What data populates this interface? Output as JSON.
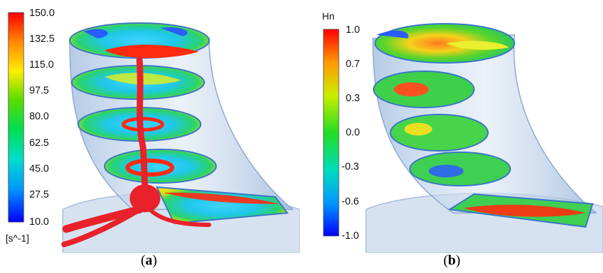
{
  "panel_a": {
    "colorbar": {
      "ticks": [
        "150.0",
        "132.5",
        "115.0",
        "97.5",
        "80.0",
        "62.5",
        "45.0",
        "27.5",
        "10.0"
      ],
      "unit": "[s^-1]",
      "colors": [
        "#ff0000",
        "#ff8800",
        "#ffee00",
        "#55dd00",
        "#00dd55",
        "#00ddcc",
        "#0099ff",
        "#0000ff"
      ]
    },
    "caption_letter": "a"
  },
  "panel_b": {
    "colorbar": {
      "title": "Hn",
      "ticks": [
        "1.0",
        "0.7",
        "0.3",
        "0.0",
        "-0.3",
        "-0.6",
        "-1.0"
      ]
    },
    "caption_letter": "b"
  },
  "caption_open": "(",
  "caption_close": ")",
  "colors": {
    "tube": "#b9cde6",
    "vortex_core": "#e8212a",
    "ring": "#c9d8ea"
  }
}
